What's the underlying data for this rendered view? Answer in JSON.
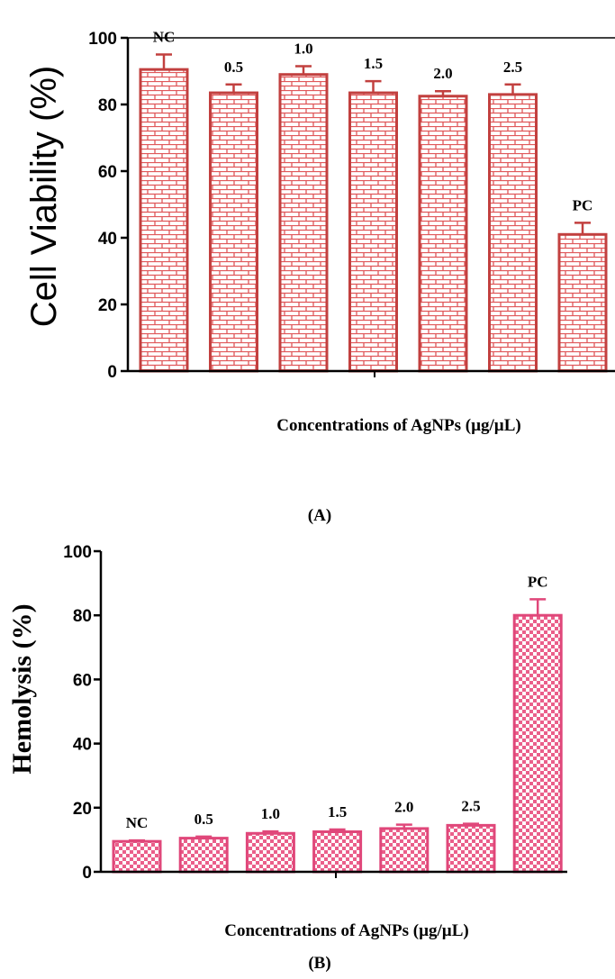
{
  "chart_data": [
    {
      "type": "bar",
      "caption": "(A)",
      "xlabel": "Concentrations of AgNPs (µg/µL)",
      "ylabel": "Cell Viability (%)",
      "ylim": [
        0,
        100
      ],
      "yticks": [
        "0",
        "20",
        "40",
        "60",
        "80",
        "100"
      ],
      "categories": [
        "NC",
        "0.5",
        "1.0",
        "1.5",
        "2.0",
        "2.5",
        "PC"
      ],
      "values": [
        90.5,
        83.5,
        89,
        83.5,
        82.5,
        83,
        41
      ],
      "errors": [
        4.5,
        2.5,
        2.5,
        3.5,
        1.5,
        3,
        3.5
      ],
      "color": "#e0585a",
      "pattern": "brick"
    },
    {
      "type": "bar",
      "caption": "(B)",
      "xlabel": "Concentrations of AgNPs  (µg/µL)",
      "ylabel": "Hemolysis (%)",
      "ylim": [
        0,
        100
      ],
      "yticks": [
        "0",
        "20",
        "40",
        "60",
        "80",
        "100"
      ],
      "categories": [
        "NC",
        "0.5",
        "1.0",
        "1.5",
        "2.0",
        "2.5",
        "PC"
      ],
      "values": [
        9.5,
        10.5,
        12,
        12.5,
        13.5,
        14.5,
        80
      ],
      "errors": [
        0.3,
        0.5,
        0.6,
        0.7,
        1.2,
        0.5,
        5
      ],
      "color": "#ea5f8a",
      "pattern": "checker"
    }
  ]
}
